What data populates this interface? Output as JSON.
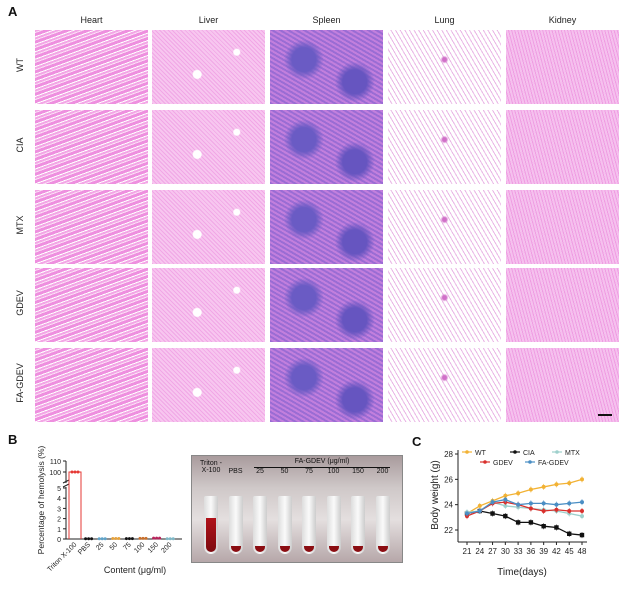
{
  "panels": {
    "a": "A",
    "b": "B",
    "c": "C"
  },
  "histology": {
    "columns": [
      "Heart",
      "Liver",
      "Spleen",
      "Lung",
      "Kidney"
    ],
    "rows": [
      "WT",
      "CIA",
      "MTX",
      "GDEV",
      "FA-GDEV"
    ]
  },
  "photo": {
    "tube_labels": [
      "Triton -X-100",
      "PBS",
      "25",
      "50",
      "75",
      "100",
      "150",
      "200"
    ],
    "group_label": "FA-GDEV (μg/ml)"
  },
  "chart_data": [
    {
      "type": "scatter",
      "title": "",
      "xlabel": "Content (μg/ml)",
      "ylabel": "Percentage of hemolysis (%)",
      "categories": [
        "Triton X-100",
        "PBS",
        "25",
        "50",
        "75",
        "100",
        "150",
        "200"
      ],
      "values": [
        100,
        0.02,
        0.03,
        0.05,
        0.04,
        0.06,
        0.08,
        0.03
      ],
      "colors": [
        "#e53935",
        "#111111",
        "#5fa3c9",
        "#e6a23c",
        "#111111",
        "#c8702d",
        "#b8245c",
        "#7fb9c8"
      ],
      "y_ticks_lower": [
        0,
        1,
        2,
        3,
        4,
        5
      ],
      "y_ticks_upper": [
        100,
        110
      ],
      "axis_break": true,
      "ylim": [
        0,
        110
      ]
    },
    {
      "type": "line",
      "xlabel": "Time(days)",
      "ylabel": "Body weight (g)",
      "x": [
        21,
        24,
        27,
        30,
        33,
        36,
        39,
        42,
        45,
        48
      ],
      "y_ticks": [
        22,
        24,
        26,
        28
      ],
      "ylim": [
        21.3,
        28
      ],
      "legend_position": "top",
      "series": [
        {
          "name": "WT",
          "color": "#f2b234",
          "marker": "circle",
          "values": [
            23.3,
            23.9,
            24.3,
            24.7,
            24.9,
            25.2,
            25.4,
            25.6,
            25.7,
            26.0
          ]
        },
        {
          "name": "CIA",
          "color": "#111111",
          "marker": "square",
          "values": [
            23.3,
            23.5,
            23.3,
            23.1,
            22.6,
            22.6,
            22.3,
            22.2,
            21.7,
            21.6
          ]
        },
        {
          "name": "MTX",
          "color": "#9ed0cc",
          "marker": "triangle-down",
          "values": [
            23.4,
            23.5,
            24.2,
            23.9,
            23.8,
            23.7,
            23.6,
            23.5,
            23.3,
            23.1
          ]
        },
        {
          "name": "GDEV",
          "color": "#d9302c",
          "marker": "triangle",
          "values": [
            23.1,
            23.5,
            24.1,
            24.2,
            24.0,
            23.7,
            23.5,
            23.6,
            23.5,
            23.5
          ]
        },
        {
          "name": "FA-GDEV",
          "color": "#4a8ec4",
          "marker": "diamond",
          "values": [
            23.3,
            23.5,
            24.2,
            24.4,
            24.0,
            24.1,
            24.1,
            24.0,
            24.1,
            24.2
          ]
        }
      ]
    }
  ]
}
